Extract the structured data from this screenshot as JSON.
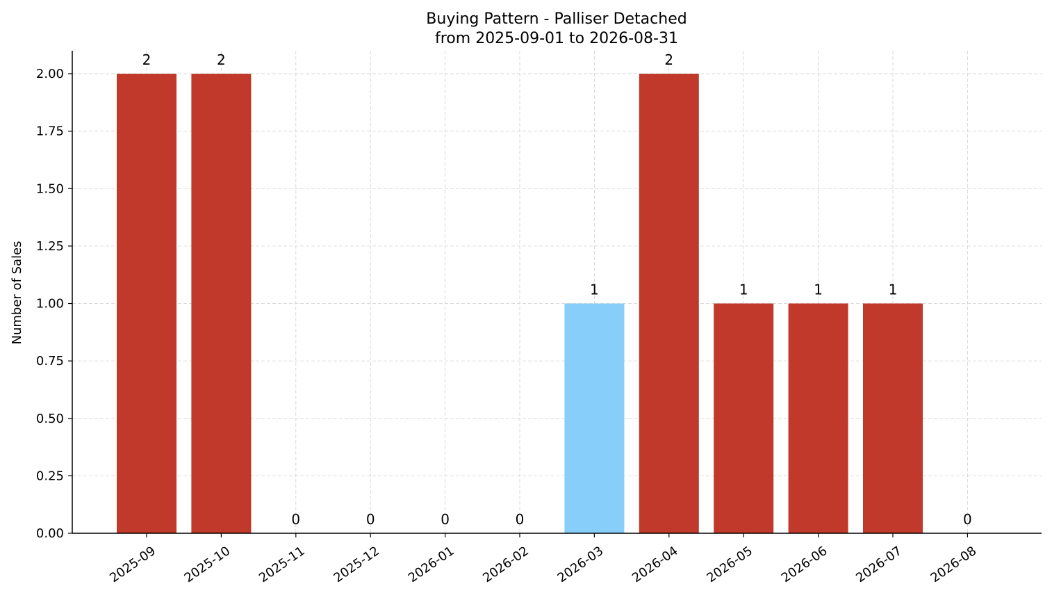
{
  "chart_data": {
    "type": "bar",
    "title": "Buying Pattern - Palliser Detached",
    "subtitle": "from 2025-09-01 to 2026-08-31",
    "xlabel": "",
    "ylabel": "Number of Sales",
    "categories": [
      "2025-09",
      "2025-10",
      "2025-11",
      "2025-12",
      "2026-01",
      "2026-02",
      "2026-03",
      "2026-04",
      "2026-05",
      "2026-06",
      "2026-07",
      "2026-08"
    ],
    "values": [
      2,
      2,
      0,
      0,
      0,
      0,
      1,
      2,
      1,
      1,
      1,
      0
    ],
    "data_labels": [
      "2",
      "2",
      "0",
      "0",
      "0",
      "0",
      "1",
      "2",
      "1",
      "1",
      "1",
      "0"
    ],
    "bar_colors": [
      "#c0392b",
      "#c0392b",
      "#c0392b",
      "#c0392b",
      "#c0392b",
      "#c0392b",
      "#87cefa",
      "#c0392b",
      "#c0392b",
      "#c0392b",
      "#c0392b",
      "#c0392b"
    ],
    "ylim": [
      0,
      2.1
    ],
    "yticks": [
      "0.00",
      "0.25",
      "0.50",
      "0.75",
      "1.00",
      "1.25",
      "1.50",
      "1.75",
      "2.00"
    ],
    "ytick_values": [
      0,
      0.25,
      0.5,
      0.75,
      1.0,
      1.25,
      1.5,
      1.75,
      2.0
    ],
    "grid": true,
    "legend": "none"
  }
}
